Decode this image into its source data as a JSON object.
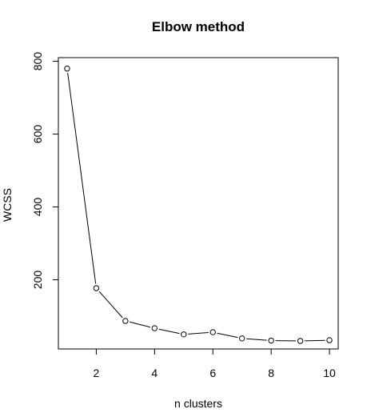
{
  "chart_data": {
    "type": "line",
    "title": "Elbow method",
    "xlabel": "n clusters",
    "ylabel": "WCSS",
    "x": [
      1,
      2,
      3,
      4,
      5,
      6,
      7,
      8,
      9,
      10
    ],
    "y": [
      780,
      177,
      87,
      67,
      50,
      56,
      39,
      33,
      32,
      34
    ],
    "xlim": [
      0.7,
      10.3
    ],
    "ylim": [
      10,
      810
    ],
    "x_ticks": [
      "2",
      "4",
      "6",
      "8",
      "10"
    ],
    "y_ticks": [
      "200",
      "400",
      "600",
      "800"
    ],
    "markers": "open-circle",
    "line_color": "#000000",
    "grid": false
  }
}
